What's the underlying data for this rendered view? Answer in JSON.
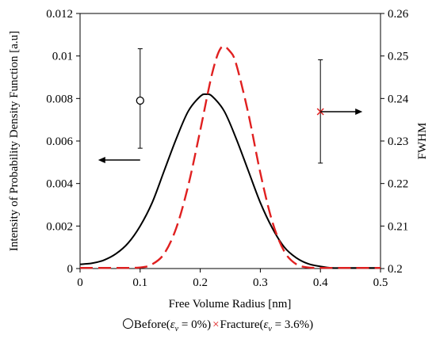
{
  "chart_data": {
    "type": "line",
    "xlabel": "Free Volume Radius [nm]",
    "ylabel": "Intensity of Probability Density Function [a.u]",
    "y2label": "FWHM",
    "xlim": [
      0,
      0.5
    ],
    "ylim": [
      0,
      0.012
    ],
    "y2lim": [
      0.2,
      0.26
    ],
    "x_ticks": [
      "0",
      "0.1",
      "0.2",
      "0.3",
      "0.4",
      "0.5"
    ],
    "y_ticks": [
      "0",
      "0.002",
      "0.004",
      "0.006",
      "0.008",
      "0.01",
      "0.012"
    ],
    "y2_ticks": [
      "0.2",
      "0.21",
      "0.22",
      "0.23",
      "0.24",
      "0.25",
      "0.26"
    ],
    "grid": false,
    "legend_position": "bottom",
    "series": [
      {
        "name": "Before",
        "style": "solid",
        "color": "#000000",
        "x": [
          0,
          0.02,
          0.04,
          0.06,
          0.08,
          0.1,
          0.12,
          0.14,
          0.16,
          0.18,
          0.2,
          0.21,
          0.22,
          0.24,
          0.26,
          0.28,
          0.3,
          0.32,
          0.34,
          0.36,
          0.38,
          0.4,
          0.42,
          0.44,
          0.46,
          0.5
        ],
        "y": [
          0.0002,
          0.00025,
          0.0004,
          0.0007,
          0.0012,
          0.002,
          0.0031,
          0.0046,
          0.0061,
          0.0074,
          0.0081,
          0.0082,
          0.0081,
          0.0074,
          0.0061,
          0.0046,
          0.0031,
          0.0019,
          0.001,
          0.0005,
          0.00022,
          0.0001,
          3e-05,
          1e-05,
          0,
          0
        ]
      },
      {
        "name": "Fracture",
        "style": "dashed",
        "color": "#e02020",
        "x": [
          0,
          0.06,
          0.1,
          0.12,
          0.14,
          0.16,
          0.18,
          0.2,
          0.22,
          0.235,
          0.25,
          0.26,
          0.28,
          0.3,
          0.32,
          0.34,
          0.36,
          0.38,
          0.4,
          0.44,
          0.5
        ],
        "y": [
          0,
          0,
          5e-05,
          0.0002,
          0.0007,
          0.0019,
          0.0039,
          0.0065,
          0.0092,
          0.0104,
          0.0102,
          0.0096,
          0.0073,
          0.0045,
          0.0022,
          0.0008,
          0.0002,
          5e-05,
          0,
          0,
          0
        ]
      }
    ],
    "markers": [
      {
        "name": "Before",
        "symbol": "circle",
        "color": "#000000",
        "x": 0.1,
        "y2": 0.2395,
        "err_low": 0.2283,
        "err_high": 0.2517,
        "axis_arrow": "left"
      },
      {
        "name": "Fracture",
        "symbol": "x",
        "color": "#e02020",
        "x": 0.4,
        "y2": 0.2369,
        "err_low": 0.2248,
        "err_high": 0.2491,
        "axis_arrow": "right"
      }
    ]
  },
  "legend": {
    "before_label": "Before(",
    "before_condition": " = 0%)",
    "fracture_label": "Fracture(",
    "fracture_condition": " = 3.6%)",
    "strain_symbol": "ε",
    "strain_sub": "v"
  }
}
